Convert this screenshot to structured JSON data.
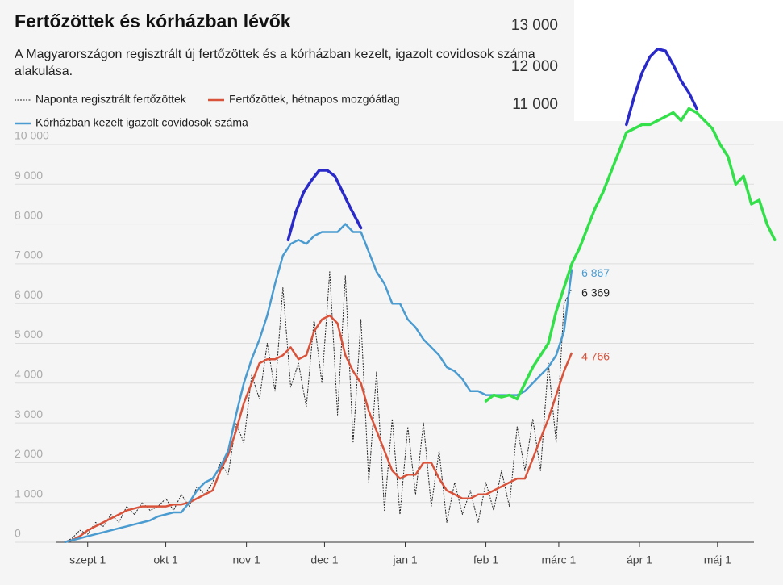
{
  "chart_data": {
    "type": "line",
    "title": "Fertőzöttek és kórházban lévők",
    "subtitle": [
      "A Magyarországon regisztrált új fertőzöttek és a kórházban kezelt, igazolt covidosok száma",
      "alakulása."
    ],
    "x": [
      -9,
      -6,
      -3,
      0,
      3,
      6,
      9,
      12,
      15,
      18,
      21,
      24,
      27,
      30,
      33,
      36,
      39,
      42,
      45,
      48,
      51,
      54,
      57,
      60,
      63,
      66,
      69,
      72,
      75,
      78,
      81,
      84,
      87,
      90,
      93,
      96,
      99,
      102,
      105,
      108,
      111,
      114,
      117,
      120,
      123,
      126,
      129,
      132,
      135,
      138,
      141,
      144,
      147,
      150,
      153,
      156,
      159,
      162,
      165,
      168,
      171,
      174,
      177,
      180,
      183,
      186
    ],
    "xlim": [
      -12,
      256
    ],
    "xticks": [
      {
        "value": 0,
        "label": "szept 1"
      },
      {
        "value": 30,
        "label": "okt 1"
      },
      {
        "value": 61,
        "label": "nov 1"
      },
      {
        "value": 91,
        "label": "dec 1"
      },
      {
        "value": 122,
        "label": "jan 1"
      },
      {
        "value": 153,
        "label": "feb 1"
      },
      {
        "value": 181,
        "label": "márc 1"
      },
      {
        "value": 212,
        "label": "ápr 1"
      },
      {
        "value": 242,
        "label": "máj 1"
      }
    ],
    "ylim": [
      0,
      10000
    ],
    "yticks": [
      0,
      {
        "value": 1000,
        "label": "1 000"
      },
      {
        "value": 2000,
        "label": "2 000"
      },
      {
        "value": 3000,
        "label": "3 000"
      },
      {
        "value": 4000,
        "label": "4 000"
      },
      {
        "value": 5000,
        "label": "5 000"
      },
      {
        "value": 6000,
        "label": "6 000"
      },
      {
        "value": 7000,
        "label": "7 000"
      },
      {
        "value": 8000,
        "label": "8 000"
      },
      {
        "value": 9000,
        "label": "9 000"
      },
      {
        "value": 10000,
        "label": "10 000"
      }
    ],
    "grid": true,
    "series": [
      {
        "name": "Naponta regisztrált fertőzöttek",
        "color": "#222222",
        "dashed": true,
        "end_label": "6 369",
        "values": [
          0,
          100,
          300,
          200,
          500,
          400,
          700,
          500,
          900,
          700,
          1000,
          800,
          900,
          1100,
          800,
          1200,
          900,
          1400,
          1200,
          1500,
          2000,
          1700,
          3000,
          2500,
          4200,
          3600,
          5000,
          3800,
          6400,
          3900,
          4500,
          3400,
          5600,
          4000,
          6800,
          3200,
          6700,
          2500,
          5600,
          1500,
          4300,
          800,
          3100,
          700,
          2900,
          1200,
          3000,
          900,
          2300,
          500,
          1500,
          700,
          1300,
          500,
          1500,
          800,
          1800,
          900,
          2900,
          1800,
          3100,
          1800,
          4500,
          2500,
          6000,
          6369
        ]
      },
      {
        "name": "Fertőzöttek, hétnapos mozgóátlag",
        "color": "#d9533b",
        "end_label": "4 766",
        "values": [
          0,
          50,
          150,
          300,
          400,
          500,
          600,
          700,
          800,
          850,
          900,
          900,
          900,
          900,
          950,
          950,
          1000,
          1100,
          1200,
          1300,
          1800,
          2200,
          2800,
          3500,
          4000,
          4500,
          4600,
          4600,
          4700,
          4900,
          4600,
          4700,
          5300,
          5600,
          5700,
          5500,
          4700,
          4300,
          4000,
          3300,
          2800,
          2300,
          1800,
          1600,
          1700,
          1700,
          2000,
          2000,
          1600,
          1300,
          1200,
          1100,
          1100,
          1200,
          1200,
          1300,
          1400,
          1500,
          1600,
          1600,
          2100,
          2600,
          3100,
          3700,
          4300,
          4766
        ]
      },
      {
        "name": "Kórházban kezelt igazolt covidosok száma",
        "color": "#4a9bd0",
        "end_label": "6 867",
        "values": [
          0,
          50,
          100,
          150,
          200,
          250,
          300,
          350,
          400,
          450,
          500,
          550,
          650,
          700,
          750,
          750,
          1000,
          1300,
          1500,
          1600,
          1900,
          2300,
          3200,
          4000,
          4600,
          5100,
          5700,
          6500,
          7200,
          7500,
          7600,
          7500,
          7700,
          7800,
          7800,
          7800,
          8000,
          7800,
          7800,
          7300,
          6800,
          6500,
          6000,
          6000,
          5600,
          5400,
          5100,
          4900,
          4700,
          4400,
          4300,
          4100,
          3800,
          3800,
          3700,
          3700,
          3700,
          3700,
          3700,
          3800,
          4000,
          4200,
          4400,
          4700,
          5300,
          6867
        ]
      }
    ],
    "annotations": {
      "labels": [
        "13 000",
        "12 000",
        "11 000"
      ],
      "lines": [
        {
          "color": "#33e04a",
          "x": [
            153,
            156,
            159,
            162,
            165,
            168,
            171,
            174,
            177,
            180,
            183,
            186,
            189,
            192,
            195,
            198,
            201,
            204,
            207,
            210,
            213,
            216,
            219,
            222,
            225,
            228,
            231,
            234,
            237,
            240,
            243,
            246,
            249,
            252,
            255,
            258,
            261,
            264
          ],
          "values": [
            3550,
            3700,
            3650,
            3700,
            3600,
            4000,
            4400,
            4700,
            5000,
            5800,
            6400,
            7000,
            7400,
            7900,
            8400,
            8800,
            9300,
            9800,
            10300,
            10400,
            10500,
            10500,
            10600,
            10700,
            10800,
            10600,
            10900,
            10800,
            10600,
            10400,
            10000,
            9700,
            9000,
            9200,
            8500,
            8600,
            8000,
            7600
          ]
        },
        {
          "color": "#2a2ac8",
          "x": [
            77,
            80,
            83,
            86,
            89,
            92,
            95,
            98,
            101,
            105
          ],
          "values": [
            7600,
            8300,
            8800,
            9100,
            9350,
            9350,
            9200,
            8800,
            8400,
            7900
          ]
        },
        {
          "color": "#2a2ac8",
          "x": [
            207,
            210,
            213,
            216,
            219,
            222,
            225,
            228,
            231,
            234
          ],
          "values": [
            10500,
            11200,
            11800,
            12200,
            12400,
            12350,
            12000,
            11600,
            11300,
            10900
          ]
        }
      ]
    }
  }
}
